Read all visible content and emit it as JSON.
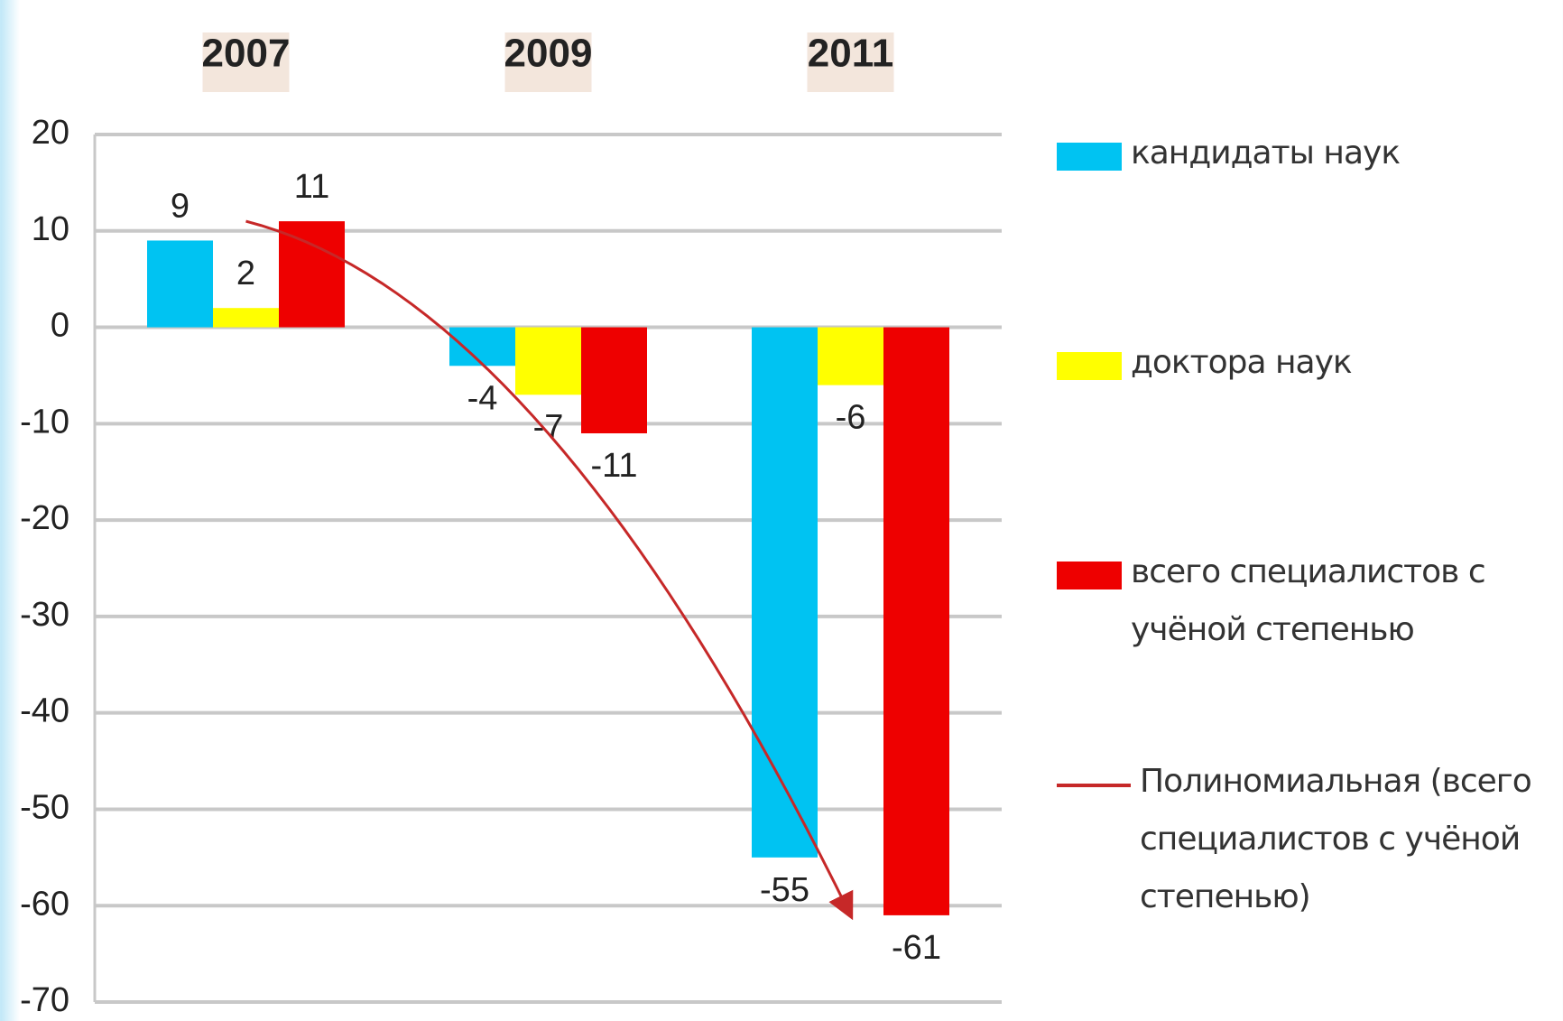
{
  "chart_data": {
    "type": "bar",
    "categories": [
      "2007",
      "2009",
      "2011"
    ],
    "series": [
      {
        "name": "кандидаты наук",
        "color": "#00c3f2",
        "values": [
          9,
          -4,
          -55
        ]
      },
      {
        "name": "доктора наук",
        "color": "#ffff00",
        "values": [
          2,
          -7,
          -6
        ]
      },
      {
        "name": "всего специалистов с учёной степенью",
        "color": "#ee0000",
        "values": [
          11,
          -11,
          -61
        ]
      }
    ],
    "trendline": {
      "name": "Полиномиальная (всего специалистов с учёной степенью)",
      "color": "#c62828"
    },
    "ylim": [
      -70,
      20
    ],
    "yticks": [
      -70,
      -60,
      -50,
      -40,
      -30,
      -20,
      -10,
      0,
      10,
      20
    ],
    "grid": true,
    "legend": "right"
  }
}
